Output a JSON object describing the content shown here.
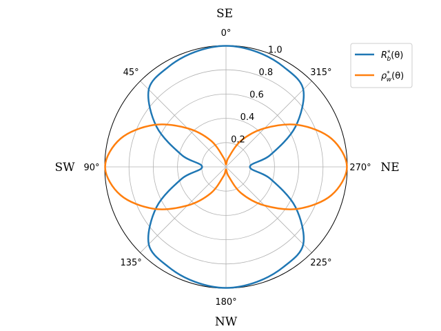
{
  "chart_data": {
    "type": "line",
    "projection": "polar",
    "theta_zero_location": "top",
    "theta_direction": "counterclockwise",
    "angle_ticks": [
      0,
      45,
      90,
      135,
      180,
      225,
      270,
      315
    ],
    "angle_tick_labels": [
      "0°",
      "45°",
      "90°",
      "135°",
      "180°",
      "225°",
      "270°",
      "315°"
    ],
    "radial_ticks": [
      0.2,
      0.4,
      0.6,
      0.8,
      1.0
    ],
    "radial_tick_labels": [
      "0.2",
      "0.4",
      "0.6",
      "0.8",
      "1.0"
    ],
    "rlim": [
      0,
      1.0
    ],
    "grid": true,
    "direction_labels": {
      "top": "SE",
      "left": "SW",
      "right": "NE",
      "bottom": "NW"
    },
    "legend": {
      "placement": "top-right"
    },
    "series": [
      {
        "name": "R_b*(θ)",
        "name_base": "R",
        "name_sub": "b",
        "name_sup": "*",
        "name_arg": "(θ)",
        "color": "#1f77b4",
        "theta_deg": [
          0,
          15,
          30,
          45,
          60,
          75,
          90,
          105,
          120,
          135,
          150,
          165,
          180,
          195,
          210,
          225,
          240,
          255,
          270,
          285,
          300,
          315,
          330,
          345,
          360
        ],
        "r": [
          0.997,
          0.981,
          0.951,
          0.901,
          0.661,
          0.378,
          0.197,
          0.378,
          0.661,
          0.901,
          0.951,
          0.981,
          0.997,
          0.981,
          0.951,
          0.901,
          0.661,
          0.378,
          0.197,
          0.378,
          0.661,
          0.901,
          0.951,
          0.981,
          0.997
        ]
      },
      {
        "name": "ρ_w*(θ)",
        "name_base": "ρ",
        "name_sub": "w",
        "name_sup": "*",
        "name_arg": "(θ)",
        "color": "#ff7f0e",
        "theta_deg": [
          0,
          15,
          30,
          45,
          60,
          75,
          90,
          105,
          120,
          135,
          150,
          165,
          180,
          195,
          210,
          225,
          240,
          255,
          270,
          285,
          300,
          315,
          330,
          345,
          360
        ],
        "r": [
          0.02,
          0.078,
          0.25,
          0.45,
          0.69,
          0.9,
          0.997,
          0.9,
          0.69,
          0.45,
          0.25,
          0.078,
          0.02,
          0.078,
          0.25,
          0.45,
          0.69,
          0.9,
          0.997,
          0.9,
          0.69,
          0.45,
          0.25,
          0.078,
          0.02
        ]
      }
    ]
  }
}
